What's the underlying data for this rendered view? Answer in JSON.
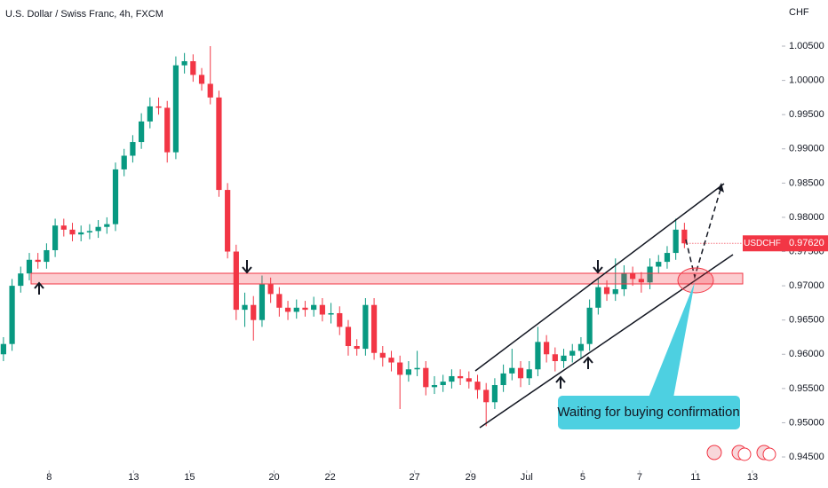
{
  "chart_data": {
    "type": "candlestick",
    "title": "U.S. Dollar / Swiss Franc, 4h, FXCM",
    "currency": "CHF",
    "symbol": "USDCHF",
    "last_price": 0.9762,
    "last_price_label": "0.97620",
    "annotation": "Waiting for buying confirmation",
    "up_color": "#089981",
    "down_color": "#f23645",
    "ylim": [
      0.94306,
      1.01174
    ],
    "yticks": [
      {
        "value": 0.945,
        "label": "0.94500"
      },
      {
        "value": 0.95,
        "label": "0.95000"
      },
      {
        "value": 0.955,
        "label": "0.95500"
      },
      {
        "value": 0.96,
        "label": "0.96000"
      },
      {
        "value": 0.965,
        "label": "0.96500"
      },
      {
        "value": 0.97,
        "label": "0.97000"
      },
      {
        "value": 0.975,
        "label": "0.97500"
      },
      {
        "value": 0.98,
        "label": "0.98000"
      },
      {
        "value": 0.985,
        "label": "0.98500"
      },
      {
        "value": 0.99,
        "label": "0.99000"
      },
      {
        "value": 0.995,
        "label": "0.99500"
      },
      {
        "value": 1.0,
        "label": "1.00000"
      },
      {
        "value": 1.005,
        "label": "1.00500"
      }
    ],
    "xlim": [
      -0.4,
      90.3
    ],
    "xticks": [
      {
        "value": 5.3,
        "label": "8"
      },
      {
        "value": 15.1,
        "label": "13"
      },
      {
        "value": 21.6,
        "label": "15"
      },
      {
        "value": 31.4,
        "label": "20"
      },
      {
        "value": 37.9,
        "label": "22"
      },
      {
        "value": 47.7,
        "label": "27"
      },
      {
        "value": 54.2,
        "label": "29"
      },
      {
        "value": 60.7,
        "label": "Jul"
      },
      {
        "value": 67.2,
        "label": "5"
      },
      {
        "value": 73.8,
        "label": "7"
      },
      {
        "value": 80.3,
        "label": "11"
      },
      {
        "value": 86.9,
        "label": "13"
      }
    ],
    "candles": [
      [
        0.96,
        0.9625,
        0.959,
        0.9615
      ],
      [
        0.9615,
        0.971,
        0.9605,
        0.97
      ],
      [
        0.97,
        0.9728,
        0.969,
        0.9718
      ],
      [
        0.9718,
        0.9748,
        0.9708,
        0.9738
      ],
      [
        0.9738,
        0.9748,
        0.9725,
        0.9735
      ],
      [
        0.9735,
        0.9762,
        0.9725,
        0.9752
      ],
      [
        0.9752,
        0.9798,
        0.9742,
        0.9788
      ],
      [
        0.9788,
        0.9798,
        0.9772,
        0.9782
      ],
      [
        0.9782,
        0.9792,
        0.9765,
        0.9775
      ],
      [
        0.9775,
        0.9788,
        0.9765,
        0.9778
      ],
      [
        0.9778,
        0.979,
        0.9768,
        0.978
      ],
      [
        0.978,
        0.9796,
        0.977,
        0.9786
      ],
      [
        0.9786,
        0.98,
        0.9776,
        0.979
      ],
      [
        0.979,
        0.988,
        0.978,
        0.987
      ],
      [
        0.987,
        0.99,
        0.986,
        0.989
      ],
      [
        0.989,
        0.992,
        0.988,
        0.991
      ],
      [
        0.991,
        0.9952,
        0.99,
        0.994
      ],
      [
        0.994,
        0.9975,
        0.993,
        0.9962
      ],
      [
        0.9962,
        0.9975,
        0.995,
        0.996
      ],
      [
        0.996,
        0.997,
        0.988,
        0.9895
      ],
      [
        0.9895,
        1.0035,
        0.9885,
        1.0022
      ],
      [
        1.0022,
        1.004,
        1.001,
        1.0028
      ],
      [
        1.0028,
        1.0038,
        0.9998,
        1.0008
      ],
      [
        1.0008,
        1.0018,
        0.9985,
        0.9995
      ],
      [
        0.9995,
        1.005,
        0.9965,
        0.9975
      ],
      [
        0.9975,
        0.9985,
        0.983,
        0.984
      ],
      [
        0.984,
        0.985,
        0.974,
        0.975
      ],
      [
        0.975,
        0.976,
        0.965,
        0.9665
      ],
      [
        0.9665,
        0.969,
        0.964,
        0.9672
      ],
      [
        0.9672,
        0.9685,
        0.962,
        0.965
      ],
      [
        0.965,
        0.9715,
        0.964,
        0.9702
      ],
      [
        0.9702,
        0.9712,
        0.9675,
        0.9688
      ],
      [
        0.9688,
        0.9698,
        0.9655,
        0.9668
      ],
      [
        0.9668,
        0.9678,
        0.965,
        0.9662
      ],
      [
        0.9662,
        0.968,
        0.9652,
        0.9668
      ],
      [
        0.9668,
        0.9678,
        0.9655,
        0.9665
      ],
      [
        0.9665,
        0.9684,
        0.9655,
        0.9672
      ],
      [
        0.9672,
        0.9682,
        0.9648,
        0.9658
      ],
      [
        0.9658,
        0.9675,
        0.9645,
        0.966
      ],
      [
        0.966,
        0.967,
        0.9628,
        0.964
      ],
      [
        0.964,
        0.965,
        0.9598,
        0.9612
      ],
      [
        0.9612,
        0.9622,
        0.9598,
        0.9608
      ],
      [
        0.9608,
        0.9682,
        0.9598,
        0.9672
      ],
      [
        0.9672,
        0.9682,
        0.9592,
        0.9602
      ],
      [
        0.9602,
        0.9612,
        0.9582,
        0.9595
      ],
      [
        0.9595,
        0.9605,
        0.9575,
        0.9588
      ],
      [
        0.9588,
        0.9598,
        0.952,
        0.957
      ],
      [
        0.957,
        0.959,
        0.956,
        0.9578
      ],
      [
        0.9578,
        0.9605,
        0.9568,
        0.958
      ],
      [
        0.958,
        0.959,
        0.954,
        0.9552
      ],
      [
        0.9552,
        0.9568,
        0.9542,
        0.9555
      ],
      [
        0.9555,
        0.957,
        0.9545,
        0.956
      ],
      [
        0.956,
        0.9578,
        0.955,
        0.9568
      ],
      [
        0.9568,
        0.9578,
        0.9555,
        0.9565
      ],
      [
        0.9565,
        0.9575,
        0.955,
        0.956
      ],
      [
        0.956,
        0.957,
        0.9535,
        0.9548
      ],
      [
        0.9548,
        0.9558,
        0.9495,
        0.953
      ],
      [
        0.953,
        0.9565,
        0.952,
        0.9555
      ],
      [
        0.9555,
        0.9585,
        0.9545,
        0.9572
      ],
      [
        0.9572,
        0.9608,
        0.9562,
        0.958
      ],
      [
        0.958,
        0.959,
        0.9552,
        0.9565
      ],
      [
        0.9565,
        0.959,
        0.9555,
        0.9578
      ],
      [
        0.9578,
        0.964,
        0.9568,
        0.9618
      ],
      [
        0.9618,
        0.9628,
        0.9588,
        0.96
      ],
      [
        0.96,
        0.961,
        0.9575,
        0.959
      ],
      [
        0.959,
        0.9608,
        0.958,
        0.9598
      ],
      [
        0.9598,
        0.9615,
        0.9588,
        0.9605
      ],
      [
        0.9605,
        0.9625,
        0.9595,
        0.9615
      ],
      [
        0.9615,
        0.968,
        0.9605,
        0.9668
      ],
      [
        0.9668,
        0.971,
        0.9658,
        0.9698
      ],
      [
        0.9698,
        0.9708,
        0.9678,
        0.9688
      ],
      [
        0.9688,
        0.974,
        0.9678,
        0.9695
      ],
      [
        0.9695,
        0.973,
        0.9685,
        0.9718
      ],
      [
        0.9718,
        0.9728,
        0.97,
        0.971
      ],
      [
        0.971,
        0.972,
        0.969,
        0.9705
      ],
      [
        0.9705,
        0.974,
        0.9695,
        0.9728
      ],
      [
        0.9728,
        0.9745,
        0.9718,
        0.9735
      ],
      [
        0.9735,
        0.9758,
        0.9725,
        0.9748
      ],
      [
        0.9748,
        0.9798,
        0.9738,
        0.9782
      ],
      [
        0.9782,
        0.9792,
        0.9755,
        0.9762
      ]
    ]
  }
}
